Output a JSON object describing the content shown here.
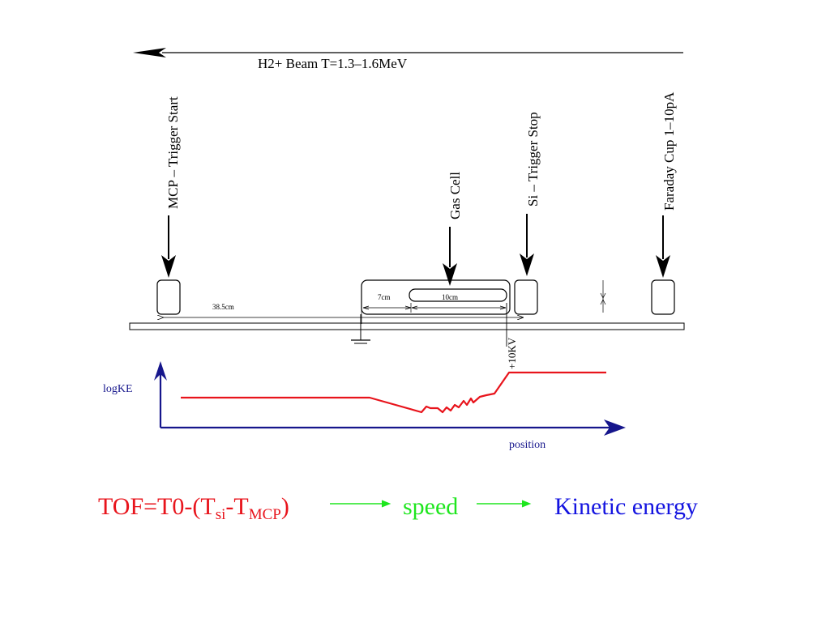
{
  "beam": {
    "label": "H2+ Beam T=1.3–1.6MeV"
  },
  "detectors": {
    "mcp": "MCP – Trigger Start",
    "gas_cell": "Gas Cell",
    "si": "Si – Trigger Stop",
    "faraday": "Faraday Cup 1–10pA"
  },
  "dimensions": {
    "d1": "38.5cm",
    "d2": "7cm",
    "d3": "10cm"
  },
  "voltage": "+10KV",
  "plot": {
    "ylabel": "logKE",
    "xlabel": "position"
  },
  "formula": {
    "tof_prefix": "TOF=T0-(T",
    "sub_si": "si",
    "dash": "-T",
    "sub_mcp": "MCP",
    "close": ")",
    "speed": "speed",
    "kinetic": "Kinetic energy"
  },
  "colors": {
    "red": "#e8141c",
    "green": "#1ee61e",
    "blue": "#1414e0",
    "axis": "#16168c"
  }
}
